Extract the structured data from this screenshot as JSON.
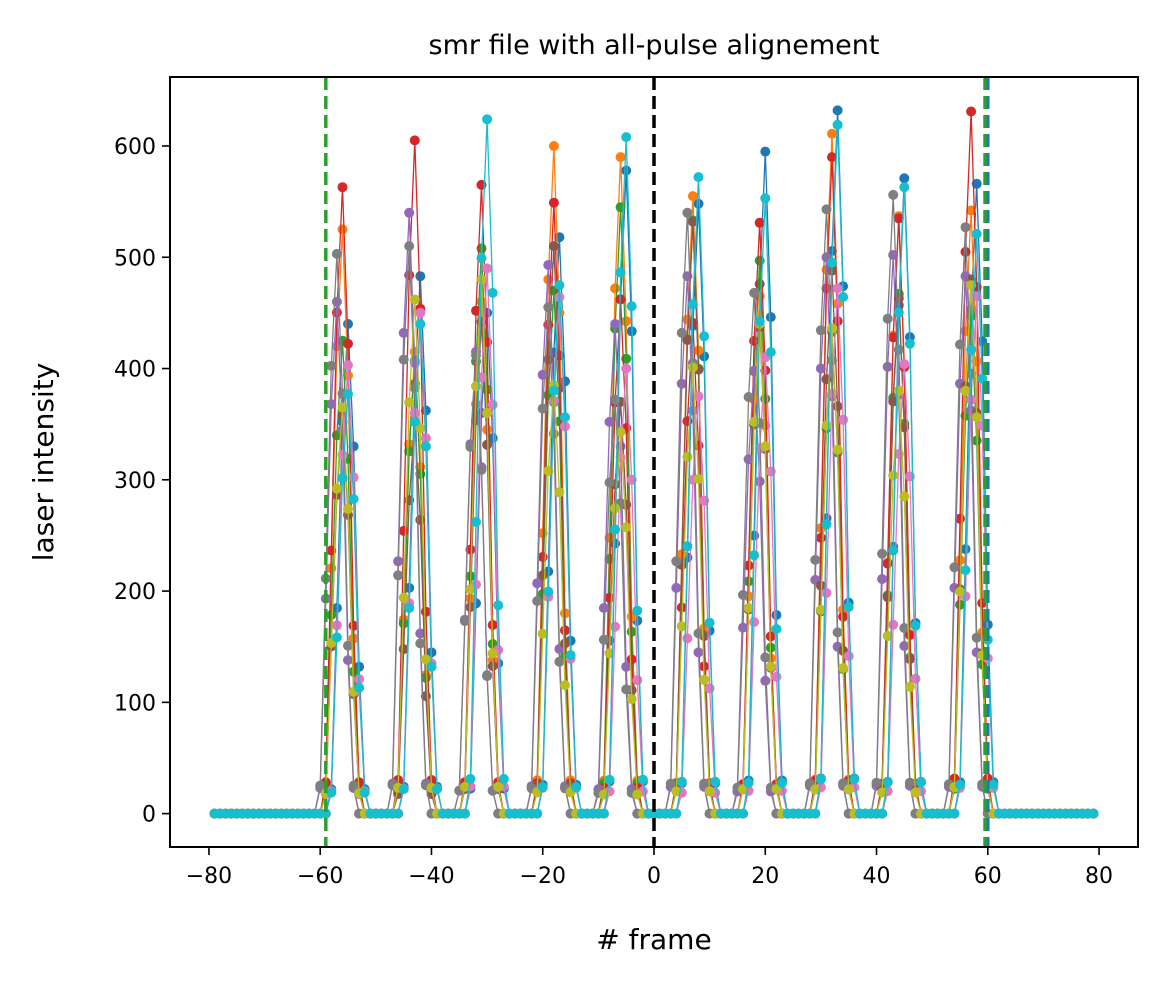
{
  "chart_data": {
    "type": "line",
    "title": "smr file with all-pulse alignement",
    "xlabel": "# frame",
    "ylabel": "laser intensity",
    "xlim": [
      -87,
      87
    ],
    "ylim": [
      -30,
      662
    ],
    "xticks": [
      -80,
      -60,
      -40,
      -20,
      0,
      20,
      40,
      60,
      80
    ],
    "xtick_labels": [
      "−80",
      "−60",
      "−40",
      "−20",
      "0",
      "20",
      "40",
      "60",
      "80"
    ],
    "yticks": [
      0,
      100,
      200,
      300,
      400,
      500,
      600
    ],
    "ytick_labels": [
      "0",
      "100",
      "200",
      "300",
      "400",
      "500",
      "600"
    ],
    "grid": false,
    "legend": "none",
    "x_range": [
      -79,
      79
    ],
    "pulse_centers": [
      -56,
      -43,
      -31,
      -18,
      -6,
      7,
      19,
      32,
      44,
      57
    ],
    "reference_lines": [
      {
        "x": -59,
        "color": "#2ca02c",
        "style": "dashed"
      },
      {
        "x": 0,
        "color": "#000000",
        "style": "dashed"
      },
      {
        "x": 60,
        "color": "#1f77b4",
        "style": "dashed"
      },
      {
        "x": 59.5,
        "color": "#2ca02c",
        "style": "dashed"
      }
    ],
    "series": [
      {
        "color": "#1f77b4",
        "peaks": [
          440,
          483,
          450,
          518,
          578,
          548,
          595,
          632,
          571,
          566
        ],
        "offset": 1
      },
      {
        "color": "#ff7f0e",
        "peaks": [
          525,
          415,
          460,
          600,
          590,
          555,
          465,
          611,
          537,
          542
        ],
        "offset": 0
      },
      {
        "color": "#2ca02c",
        "peaks": [
          425,
          407,
          508,
          470,
          545,
          533,
          497,
          433,
          467,
          447
        ],
        "offset": 0
      },
      {
        "color": "#d62728",
        "peaks": [
          563,
          605,
          565,
          549,
          462,
          441,
          531,
          590,
          535,
          631
        ],
        "offset": 0
      },
      {
        "color": "#9467bd",
        "peaks": [
          460,
          540,
          415,
          493,
          440,
          483,
          398,
          500,
          502,
          483
        ],
        "offset": -1
      },
      {
        "color": "#8c564b",
        "peaks": [
          358,
          352,
          442,
          510,
          370,
          532,
          437,
          488,
          463,
          480
        ],
        "offset": 0
      },
      {
        "color": "#e377c2",
        "peaks": [
          403,
          450,
          490,
          464,
          400,
          375,
          410,
          472,
          404,
          465
        ],
        "offset": 1
      },
      {
        "color": "#7f7f7f",
        "peaks": [
          503,
          510,
          412,
          455,
          372,
          540,
          468,
          543,
          556,
          527
        ],
        "offset": -1
      },
      {
        "color": "#bcbd22",
        "peaks": [
          365,
          462,
          480,
          385,
          343,
          401,
          440,
          436,
          380,
          475
        ],
        "offset": 0
      },
      {
        "color": "#17becf",
        "peaks": [
          377,
          440,
          624,
          475,
          608,
          572,
          553,
          619,
          563,
          521
        ],
        "offset": 1
      }
    ]
  }
}
